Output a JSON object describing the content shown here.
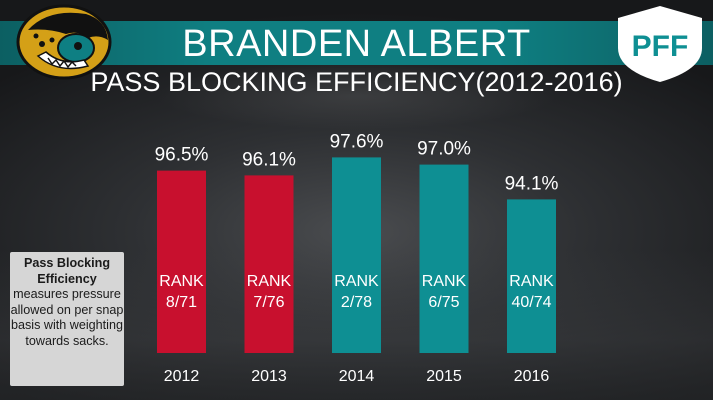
{
  "header": {
    "title": "BRANDEN ALBERT",
    "subtitle": "PASS BLOCKING EFFICIENCY(2012-2016)",
    "brand": "PFF"
  },
  "info_box": {
    "bold_text": "Pass Blocking Efficiency",
    "body_text": "measures pressure allowed on per snap basis with weighting towards sacks."
  },
  "colors": {
    "red_bar": "#c8102e",
    "teal_bar": "#0e8f93",
    "header_band": "#0f7f82"
  },
  "chart_data": {
    "type": "bar",
    "title": "PASS BLOCKING EFFICIENCY(2012-2016)",
    "categories": [
      "2012",
      "2013",
      "2014",
      "2015",
      "2016"
    ],
    "values": [
      96.5,
      96.1,
      97.6,
      97.0,
      94.1
    ],
    "value_labels": [
      "96.5%",
      "96.1%",
      "97.6%",
      "97.0%",
      "94.1%"
    ],
    "rank_label": "RANK",
    "ranks": [
      "8/71",
      "7/76",
      "2/78",
      "6/75",
      "40/74"
    ],
    "bar_colors": [
      "#c8102e",
      "#c8102e",
      "#0e8f93",
      "#0e8f93",
      "#0e8f93"
    ],
    "xlabel": "",
    "ylabel": "",
    "grid": false
  }
}
